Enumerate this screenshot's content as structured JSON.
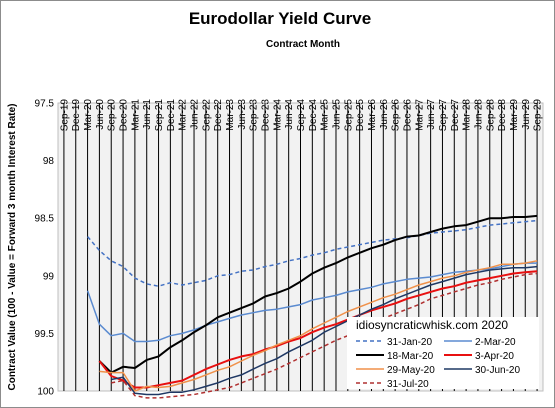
{
  "chart_data": {
    "type": "line",
    "title": "Eurodollar Yield Curve",
    "xlabel": "Contract Month",
    "ylabel": "Contract Value (100 - Value = Forward 3 month Interest Rate)",
    "annotation": "idiosyncraticwhisk.com  2020",
    "ylim": [
      97.5,
      100
    ],
    "y_reversed": true,
    "yticks": [
      "97.5",
      "98",
      "98.5",
      "99",
      "99.5",
      "100"
    ],
    "grid": "vertical lines at each contract month",
    "legend": "bottom-right",
    "categories": [
      "Sep-19",
      "Dec-19",
      "Mar-20",
      "Jun-20",
      "Sep-20",
      "Dec-20",
      "Mar-21",
      "Jun-21",
      "Sep-21",
      "Dec-21",
      "Mar-22",
      "Jun-22",
      "Sep-22",
      "Dec-22",
      "Mar-23",
      "Jun-23",
      "Sep-23",
      "Dec-23",
      "Mar-24",
      "Jun-24",
      "Sep-24",
      "Dec-24",
      "Mar-25",
      "Jun-25",
      "Sep-25",
      "Dec-25",
      "Mar-26",
      "Jun-26",
      "Sep-26",
      "Dec-26",
      "Mar-27",
      "Jun-27",
      "Sep-27",
      "Dec-27",
      "Mar-28",
      "Jun-28",
      "Sep-28",
      "Dec-28",
      "Mar-29",
      "Jun-29",
      "Sep-29"
    ],
    "series": [
      {
        "name": "31-Jan-20",
        "color": "#4472c4",
        "dash": true,
        "width": 1.5,
        "values": [
          null,
          null,
          98.66,
          98.78,
          98.87,
          98.92,
          99.02,
          99.07,
          99.09,
          99.06,
          99.08,
          99.06,
          99.04,
          99.0,
          98.99,
          98.96,
          98.95,
          98.92,
          98.9,
          98.87,
          98.85,
          98.82,
          98.8,
          98.77,
          98.75,
          98.73,
          98.71,
          98.69,
          98.68,
          98.67,
          98.65,
          98.63,
          98.62,
          98.61,
          98.6,
          98.58,
          98.56,
          98.55,
          98.54,
          98.53,
          98.52
        ]
      },
      {
        "name": "2-Mar-20",
        "color": "#5b8bd0",
        "dash": false,
        "width": 1.5,
        "values": [
          null,
          null,
          99.13,
          99.42,
          99.52,
          99.5,
          99.57,
          99.57,
          99.56,
          99.52,
          99.5,
          99.47,
          99.43,
          99.4,
          99.37,
          99.34,
          99.32,
          99.3,
          99.29,
          99.27,
          99.25,
          99.21,
          99.19,
          99.17,
          99.14,
          99.12,
          99.1,
          99.07,
          99.05,
          99.03,
          99.02,
          99.01,
          98.99,
          98.97,
          98.96,
          98.95,
          98.94,
          98.92,
          98.9,
          98.89,
          98.89
        ]
      },
      {
        "name": "18-Mar-20",
        "color": "#000000",
        "dash": false,
        "width": 2,
        "values": [
          null,
          null,
          null,
          99.74,
          99.84,
          99.79,
          99.8,
          99.73,
          99.7,
          99.62,
          99.56,
          99.49,
          99.43,
          99.36,
          99.32,
          99.28,
          99.24,
          99.18,
          99.15,
          99.11,
          99.05,
          98.98,
          98.93,
          98.89,
          98.84,
          98.8,
          98.76,
          98.73,
          98.69,
          98.66,
          98.65,
          98.62,
          98.59,
          98.57,
          98.56,
          98.53,
          98.5,
          98.5,
          98.49,
          98.49,
          98.48
        ]
      },
      {
        "name": "3-Apr-20",
        "color": "#e81010",
        "dash": false,
        "width": 2,
        "values": [
          null,
          null,
          null,
          99.74,
          99.87,
          99.91,
          99.97,
          99.97,
          99.95,
          99.93,
          99.91,
          99.86,
          99.81,
          99.77,
          99.73,
          99.7,
          99.68,
          99.64,
          99.61,
          99.57,
          99.54,
          99.49,
          99.45,
          99.42,
          99.38,
          99.34,
          99.3,
          99.27,
          99.24,
          99.2,
          99.17,
          99.14,
          99.11,
          99.09,
          99.06,
          99.04,
          99.02,
          99.0,
          98.98,
          98.97,
          98.96
        ]
      },
      {
        "name": "29-May-20",
        "color": "#f0914a",
        "dash": false,
        "width": 1.5,
        "values": [
          null,
          null,
          null,
          99.83,
          99.84,
          99.84,
          100.0,
          99.96,
          99.97,
          99.96,
          99.93,
          99.9,
          99.86,
          99.82,
          99.79,
          99.74,
          99.69,
          99.65,
          99.6,
          99.56,
          99.52,
          99.46,
          99.41,
          99.36,
          99.31,
          99.27,
          99.23,
          99.19,
          99.16,
          99.12,
          99.08,
          99.05,
          99.02,
          99.0,
          98.97,
          98.95,
          98.93,
          98.9,
          98.9,
          98.89,
          98.87
        ]
      },
      {
        "name": "30-Jun-20",
        "color": "#1f3864",
        "dash": false,
        "width": 1.5,
        "values": [
          null,
          null,
          null,
          null,
          99.9,
          99.88,
          100.02,
          100.03,
          100.03,
          100.01,
          100.01,
          99.99,
          99.96,
          99.93,
          99.89,
          99.86,
          99.81,
          99.76,
          99.72,
          99.66,
          99.61,
          99.56,
          99.49,
          99.44,
          99.39,
          99.34,
          99.29,
          99.25,
          99.2,
          99.16,
          99.12,
          99.08,
          99.05,
          99.02,
          98.99,
          98.97,
          98.95,
          98.94,
          98.93,
          98.93,
          98.92
        ]
      },
      {
        "name": "31-Jul-20",
        "color": "#b03030",
        "dash": true,
        "width": 1.5,
        "values": [
          null,
          null,
          null,
          null,
          99.93,
          99.91,
          100.04,
          100.06,
          100.06,
          100.05,
          100.04,
          100.03,
          100.01,
          99.99,
          99.97,
          99.93,
          99.89,
          99.85,
          99.81,
          99.76,
          99.71,
          99.66,
          99.61,
          99.56,
          99.52,
          99.47,
          99.42,
          99.37,
          99.33,
          99.29,
          99.25,
          99.2,
          99.17,
          99.14,
          99.11,
          99.08,
          99.06,
          99.03,
          99.01,
          98.99,
          98.98
        ]
      }
    ]
  }
}
